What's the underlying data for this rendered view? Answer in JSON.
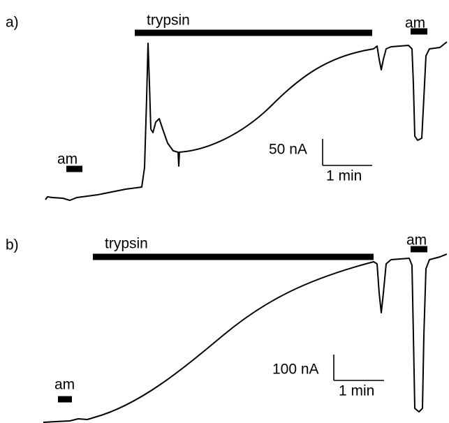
{
  "panels": [
    {
      "label": "a)",
      "drug": "trypsin",
      "agonist_before": "am",
      "agonist_after": "am",
      "scale_y": "50 nA",
      "scale_x": "1 min"
    },
    {
      "label": "b)",
      "drug": "trypsin",
      "agonist_before": "am",
      "agonist_after": "am",
      "scale_y": "100 nA",
      "scale_x": "1 min"
    }
  ]
}
